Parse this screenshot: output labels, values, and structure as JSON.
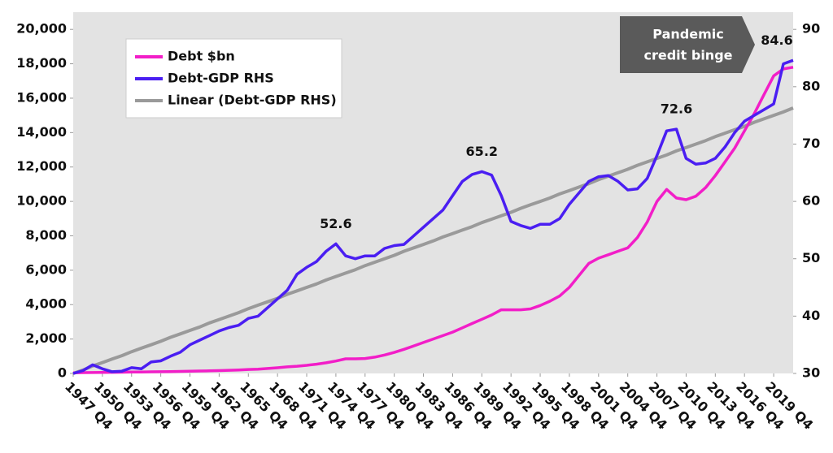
{
  "chart_data": {
    "type": "line",
    "categories": [
      "1947 Q4",
      null,
      null,
      "1950 Q4",
      null,
      null,
      "1953 Q4",
      null,
      null,
      "1956 Q4",
      null,
      null,
      "1959 Q4",
      null,
      null,
      "1962 Q4",
      null,
      null,
      "1965 Q4",
      null,
      null,
      "1968 Q4",
      null,
      null,
      "1971 Q4",
      null,
      null,
      "1974 Q4",
      null,
      null,
      "1977 Q4",
      null,
      null,
      "1980 Q4",
      null,
      null,
      "1983 Q4",
      null,
      null,
      "1986 Q4",
      null,
      null,
      "1989 Q4",
      null,
      null,
      "1992 Q4",
      null,
      null,
      "1995 Q4",
      null,
      null,
      "1998 Q4",
      null,
      null,
      "2001 Q4",
      null,
      null,
      "2004 Q4",
      null,
      null,
      "2007 Q4",
      null,
      null,
      "2010 Q4",
      null,
      null,
      "2013 Q4",
      null,
      null,
      "2016 Q4",
      null,
      null,
      "2019 Q4",
      null,
      null
    ],
    "series": [
      {
        "name": "Debt $bn",
        "color": "#f21ec8",
        "axis": "y",
        "values": [
          40,
          45,
          50,
          60,
          65,
          70,
          80,
          85,
          95,
          100,
          110,
          120,
          130,
          140,
          150,
          165,
          185,
          205,
          230,
          250,
          290,
          330,
          380,
          420,
          470,
          540,
          620,
          720,
          850,
          850,
          870,
          950,
          1070,
          1220,
          1400,
          1600,
          1800,
          2000,
          2200,
          2400,
          2650,
          2900,
          3150,
          3400,
          3700,
          3700,
          3700,
          3750,
          3950,
          4200,
          4500,
          5000,
          5700,
          6400,
          6700,
          6900,
          7100,
          7300,
          7900,
          8800,
          10000,
          10700,
          10200,
          10100,
          10300,
          10800,
          11500,
          12300,
          13100,
          14100,
          15100,
          16200,
          17300,
          17700,
          17800
        ]
      },
      {
        "name": "Debt-GDP RHS",
        "color": "#4a1ef2",
        "axis": "y2",
        "values": [
          30,
          30.5,
          31.5,
          30.8,
          30.3,
          30.4,
          31,
          30.8,
          32,
          32.2,
          33,
          33.7,
          35,
          35.8,
          36.6,
          37.4,
          38,
          38.4,
          39.6,
          40,
          41.5,
          43,
          44.5,
          47.3,
          48.5,
          49.5,
          51.3,
          52.6,
          50.5,
          50,
          50.5,
          50.5,
          51.8,
          52.3,
          52.5,
          54,
          55.5,
          57,
          58.5,
          61,
          63.5,
          64.7,
          65.2,
          64.6,
          61,
          56.5,
          55.8,
          55.3,
          56,
          56,
          57,
          59.5,
          61.5,
          63.5,
          64.3,
          64.5,
          63.5,
          62,
          62.2,
          64,
          68,
          72.3,
          72.6,
          67.5,
          66.5,
          66.7,
          67.5,
          69.5,
          72,
          74,
          75,
          76,
          77,
          84,
          84.6
        ],
        "value_labels": [
          null,
          null,
          null,
          null,
          null,
          null,
          null,
          null,
          null,
          null,
          null,
          null,
          null,
          null,
          null,
          null,
          null,
          null,
          null,
          null,
          null,
          null,
          null,
          null,
          null,
          null,
          null,
          "52.6",
          null,
          null,
          null,
          null,
          null,
          null,
          null,
          null,
          null,
          null,
          null,
          null,
          null,
          null,
          "65.2",
          null,
          null,
          null,
          null,
          null,
          null,
          null,
          null,
          null,
          null,
          null,
          null,
          null,
          null,
          null,
          null,
          null,
          null,
          null,
          "72.6",
          null,
          null,
          null,
          null,
          null,
          null,
          null,
          null,
          null,
          null,
          null,
          "84.6"
        ]
      },
      {
        "name": "Linear (Debt-GDP RHS)",
        "color": "#9a9a9a",
        "axis": "y2",
        "values": [
          30,
          30.6,
          31.3,
          31.9,
          32.5,
          33.1,
          33.8,
          34.4,
          35,
          35.6,
          36.3,
          36.9,
          37.5,
          38.1,
          38.8,
          39.4,
          40,
          40.6,
          41.3,
          41.9,
          42.5,
          43.1,
          43.8,
          44.4,
          45,
          45.6,
          46.3,
          46.9,
          47.5,
          48.1,
          48.8,
          49.4,
          50,
          50.6,
          51.3,
          51.9,
          52.5,
          53.1,
          53.8,
          54.4,
          55,
          55.6,
          56.3,
          56.9,
          57.5,
          58.1,
          58.8,
          59.4,
          60,
          60.6,
          61.3,
          61.9,
          62.5,
          63.1,
          63.8,
          64.4,
          65,
          65.6,
          66.3,
          66.9,
          67.5,
          68.1,
          68.8,
          69.4,
          70,
          70.6,
          71.3,
          71.9,
          72.5,
          73.1,
          73.8,
          74.4,
          75,
          75.6,
          76.3
        ]
      }
    ],
    "ylim": [
      0,
      21000
    ],
    "yticks": [
      0,
      {
        "value": 2000,
        "label": "2,000"
      },
      {
        "value": 4000,
        "label": "4,000"
      },
      {
        "value": 6000,
        "label": "6,000"
      },
      {
        "value": 8000,
        "label": "8,000"
      },
      {
        "value": 10000,
        "label": "10,000"
      },
      {
        "value": 12000,
        "label": "12,000"
      },
      {
        "value": 14000,
        "label": "14,000"
      },
      {
        "value": 16000,
        "label": "16,000"
      },
      {
        "value": 18000,
        "label": "18,000"
      },
      {
        "value": 20000,
        "label": "20,000"
      }
    ],
    "y2lim": [
      30,
      93
    ],
    "y2ticks": [
      30,
      40,
      50,
      60,
      70,
      80,
      90
    ],
    "grid": false,
    "legend": "upper-left",
    "annotation": [
      "Pandemic",
      "credit binge"
    ]
  }
}
